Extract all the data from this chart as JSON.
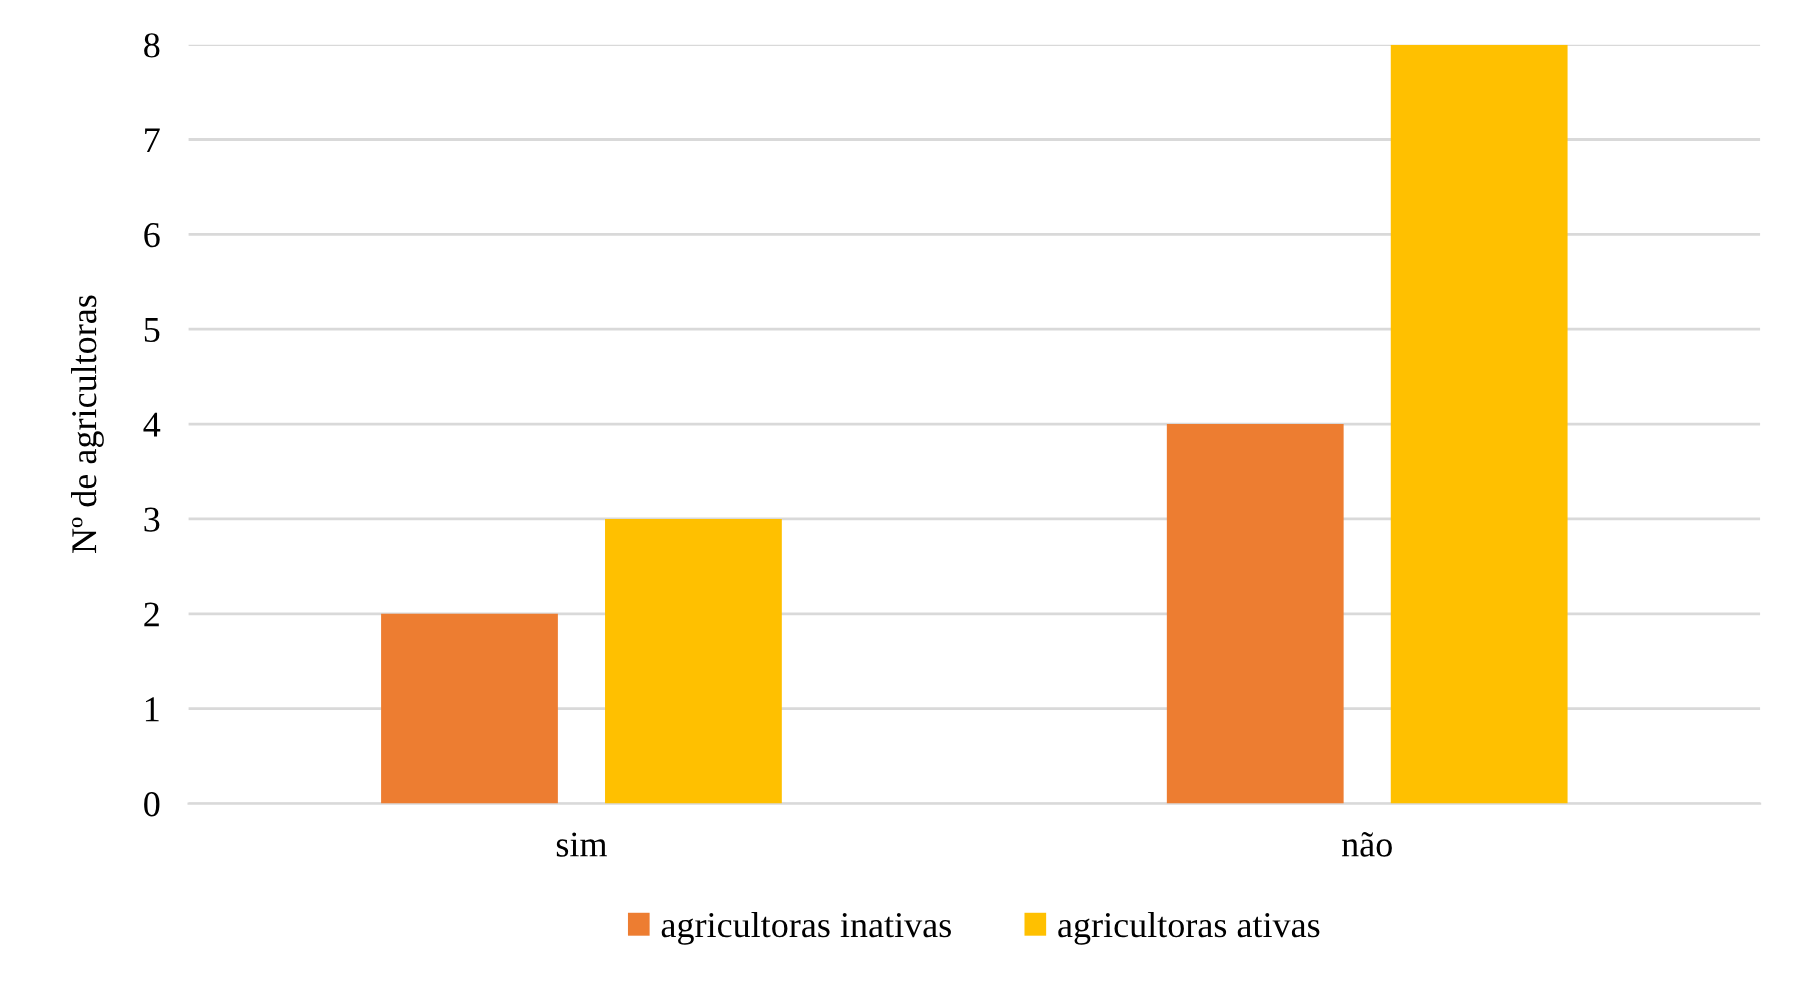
{
  "chart_data": {
    "type": "bar",
    "ylabel": "Nº de agricultoras",
    "categories": [
      "sim",
      "não"
    ],
    "series": [
      {
        "name": "agricultoras inativas",
        "color": "#ed7d31",
        "values": [
          2,
          4
        ]
      },
      {
        "name": "agricultoras ativas",
        "color": "#ffc000",
        "values": [
          3,
          8
        ]
      }
    ],
    "ylim": [
      0,
      8
    ],
    "yticks": [
      0,
      1,
      2,
      3,
      4,
      5,
      6,
      7,
      8
    ],
    "grid": "y",
    "legend": "bottom"
  }
}
